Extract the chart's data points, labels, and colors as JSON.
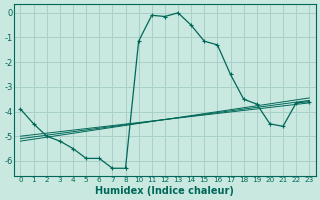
{
  "xlabel": "Humidex (Indice chaleur)",
  "background_color": "#c8e8e0",
  "grid_color": "#a8d0c8",
  "line_color": "#006858",
  "xlim": [
    -0.5,
    22.5
  ],
  "ylim": [
    -6.6,
    0.35
  ],
  "ytick_values": [
    0,
    -1,
    -2,
    -3,
    -4,
    -5,
    -6
  ],
  "xtick_labels": [
    "0",
    "1",
    "2",
    "3",
    "4",
    "5",
    "6",
    "7",
    "8",
    "10",
    "11",
    "12",
    "13",
    "14",
    "15",
    "16",
    "17",
    "18",
    "19",
    "20",
    "21",
    "22",
    "23"
  ],
  "series0_y": [
    -3.9,
    -4.5,
    -5.0,
    -5.2,
    -5.5,
    -5.9,
    -5.9,
    -6.3,
    -6.3,
    -1.15,
    -0.1,
    -0.15,
    0.0,
    -0.5,
    -1.15,
    -1.3,
    -2.5,
    -3.5,
    -3.7,
    -4.5,
    -4.6,
    -3.65,
    -3.6
  ],
  "trend_lines": [
    {
      "x0y": -5.0,
      "x1y": -3.65
    },
    {
      "x0y": -5.1,
      "x1y": -3.55
    },
    {
      "x0y": -5.2,
      "x1y": -3.45
    }
  ]
}
